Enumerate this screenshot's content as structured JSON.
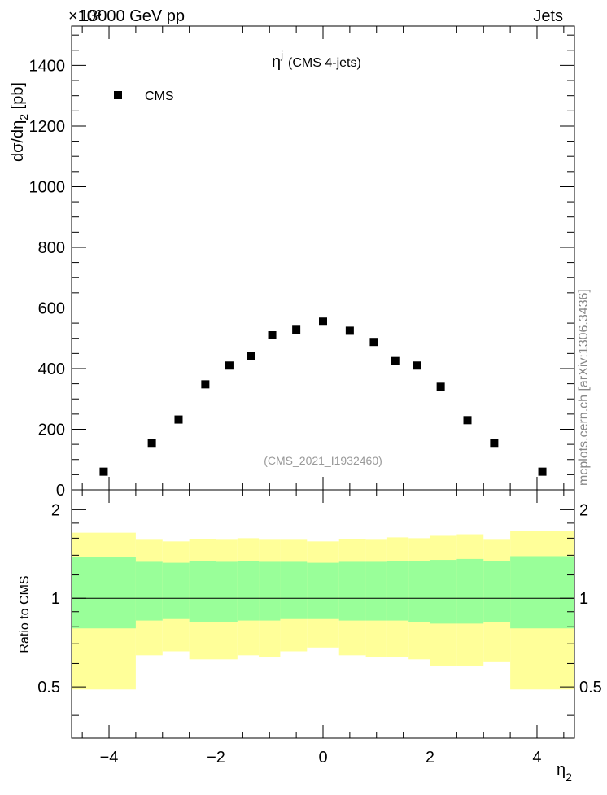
{
  "header": {
    "left": "13000 GeV pp",
    "right": "Jets",
    "exponent": "×10³"
  },
  "watermark": "mcplots.cern.ch [arXiv:1306.3436]",
  "chart_data": [
    {
      "type": "scatter",
      "title_symbol": "η",
      "title_sup": "j",
      "title_text": "(CMS 4-jets)",
      "ylabel": "dσ/dη₂ [pb]",
      "ylabel_base": "dσ/dη",
      "ylabel_sub": "2",
      "ylabel_unit": " [pb]",
      "xlim": [
        -4.7,
        4.7
      ],
      "ylim": [
        0,
        1530
      ],
      "y_multiplier": "×10³",
      "yticks": [
        0,
        200,
        400,
        600,
        800,
        1000,
        1200,
        1400
      ],
      "legend": {
        "position": "top-left",
        "entries": [
          "CMS"
        ]
      },
      "annotation": "(CMS_2021_I1932460)",
      "series": [
        {
          "name": "CMS",
          "color": "#000000",
          "x": [
            -4.1,
            -3.2,
            -2.7,
            -2.2,
            -1.75,
            -1.35,
            -0.95,
            -0.5,
            0.0,
            0.5,
            0.95,
            1.35,
            1.75,
            2.2,
            2.7,
            3.2,
            4.1
          ],
          "y": [
            60,
            155,
            232,
            348,
            410,
            442,
            510,
            528,
            555,
            525,
            488,
            425,
            410,
            340,
            230,
            155,
            60
          ]
        }
      ]
    },
    {
      "type": "area",
      "ylabel": "Ratio to CMS",
      "xlabel": "η₂",
      "xlabel_base": "η",
      "xlabel_sub": "2",
      "xlim": [
        -4.7,
        4.7
      ],
      "ylim": [
        0.335,
        2.335
      ],
      "yticks": [
        0.5,
        1,
        2
      ],
      "yticklabels": [
        "0.5",
        "1",
        "2"
      ],
      "xticks": [
        -4,
        -2,
        0,
        2,
        4
      ],
      "xticklabels": [
        "−4",
        "−2",
        "0",
        "2",
        "4"
      ],
      "reference_line": 1,
      "colors": {
        "outer": "#ffff99",
        "inner": "#99ff99"
      },
      "bins": [
        {
          "x0": -4.7,
          "x1": -3.5,
          "inner": [
            0.79,
            1.38
          ],
          "outer": [
            0.49,
            1.67
          ]
        },
        {
          "x0": -3.5,
          "x1": -3.0,
          "inner": [
            0.84,
            1.33
          ],
          "outer": [
            0.64,
            1.58
          ]
        },
        {
          "x0": -3.0,
          "x1": -2.5,
          "inner": [
            0.85,
            1.32
          ],
          "outer": [
            0.66,
            1.56
          ]
        },
        {
          "x0": -2.5,
          "x1": -2.0,
          "inner": [
            0.83,
            1.34
          ],
          "outer": [
            0.62,
            1.59
          ]
        },
        {
          "x0": -2.0,
          "x1": -1.6,
          "inner": [
            0.83,
            1.33
          ],
          "outer": [
            0.62,
            1.58
          ]
        },
        {
          "x0": -1.6,
          "x1": -1.2,
          "inner": [
            0.84,
            1.34
          ],
          "outer": [
            0.64,
            1.6
          ]
        },
        {
          "x0": -1.2,
          "x1": -0.8,
          "inner": [
            0.84,
            1.33
          ],
          "outer": [
            0.63,
            1.58
          ]
        },
        {
          "x0": -0.8,
          "x1": -0.3,
          "inner": [
            0.85,
            1.33
          ],
          "outer": [
            0.66,
            1.58
          ]
        },
        {
          "x0": -0.3,
          "x1": 0.3,
          "inner": [
            0.85,
            1.32
          ],
          "outer": [
            0.68,
            1.56
          ]
        },
        {
          "x0": 0.3,
          "x1": 0.8,
          "inner": [
            0.84,
            1.33
          ],
          "outer": [
            0.64,
            1.59
          ]
        },
        {
          "x0": 0.8,
          "x1": 1.2,
          "inner": [
            0.84,
            1.33
          ],
          "outer": [
            0.63,
            1.58
          ]
        },
        {
          "x0": 1.2,
          "x1": 1.6,
          "inner": [
            0.84,
            1.34
          ],
          "outer": [
            0.63,
            1.61
          ]
        },
        {
          "x0": 1.6,
          "x1": 2.0,
          "inner": [
            0.83,
            1.34
          ],
          "outer": [
            0.62,
            1.6
          ]
        },
        {
          "x0": 2.0,
          "x1": 2.5,
          "inner": [
            0.82,
            1.35
          ],
          "outer": [
            0.59,
            1.63
          ]
        },
        {
          "x0": 2.5,
          "x1": 3.0,
          "inner": [
            0.82,
            1.36
          ],
          "outer": [
            0.59,
            1.65
          ]
        },
        {
          "x0": 3.0,
          "x1": 3.5,
          "inner": [
            0.83,
            1.34
          ],
          "outer": [
            0.61,
            1.58
          ]
        },
        {
          "x0": 3.5,
          "x1": 4.7,
          "inner": [
            0.79,
            1.39
          ],
          "outer": [
            0.49,
            1.69
          ]
        }
      ]
    }
  ]
}
